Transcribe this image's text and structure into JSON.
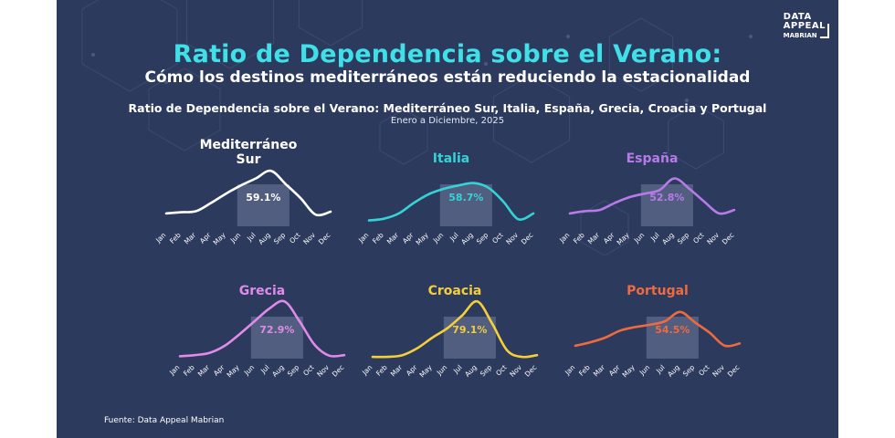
{
  "title": "Ratio de Dependencia sobre el Verano:",
  "subtitle": "Cómo los destinos mediterráneos están reduciendo la estacionalidad",
  "chart_heading": "Ratio de Dependencia sobre el Verano: Mediterráneo Sur, Italia, España, Grecia, Croacia y Portugal",
  "period": "Enero a Diciembre, 2025",
  "source": "Fuente: Data Appeal Mabrian",
  "logo": {
    "line1": "DATA",
    "line2": "APPEAL",
    "line3": "MABRIAN"
  },
  "colors": {
    "background": "#2c3a5e",
    "title": "#3fe0e8",
    "highlight": "#5d6b8c"
  },
  "chart_data": [
    {
      "type": "line",
      "title_lines": [
        "Mediterráneo",
        "Sur"
      ],
      "color": "#ffffff",
      "ratio_label": "59.1%",
      "categories": [
        "Jan",
        "Feb",
        "Mar",
        "Apr",
        "May",
        "Jun",
        "Jul",
        "Aug",
        "Sep",
        "Oct",
        "Nov",
        "Dec"
      ],
      "highlight": [
        "Jun",
        "Sep"
      ],
      "values": [
        0.22,
        0.24,
        0.26,
        0.4,
        0.56,
        0.7,
        0.82,
        0.95,
        0.72,
        0.48,
        0.2,
        0.25
      ]
    },
    {
      "type": "line",
      "title_lines": [
        "Italia"
      ],
      "color": "#35d3d6",
      "ratio_label": "58.7%",
      "categories": [
        "Jan",
        "Feb",
        "Mar",
        "Apr",
        "May",
        "Jun",
        "Jul",
        "Aug",
        "Sep",
        "Oct",
        "Nov",
        "Dec"
      ],
      "highlight": [
        "Jun",
        "Sep"
      ],
      "values": [
        0.1,
        0.13,
        0.22,
        0.4,
        0.55,
        0.64,
        0.7,
        0.74,
        0.66,
        0.42,
        0.12,
        0.22
      ]
    },
    {
      "type": "line",
      "title_lines": [
        "España"
      ],
      "color": "#b77be8",
      "ratio_label": "52.8%",
      "categories": [
        "Jan",
        "Feb",
        "Mar",
        "Apr",
        "May",
        "Jun",
        "Jul",
        "Aug",
        "Sep",
        "Oct",
        "Nov",
        "Dec"
      ],
      "highlight": [
        "Jun",
        "Sep"
      ],
      "values": [
        0.22,
        0.26,
        0.28,
        0.4,
        0.5,
        0.56,
        0.62,
        0.82,
        0.64,
        0.42,
        0.22,
        0.28
      ]
    },
    {
      "type": "line",
      "title_lines": [
        "Grecia"
      ],
      "color": "#e08be8",
      "ratio_label": "72.9%",
      "categories": [
        "Jan",
        "Feb",
        "Mar",
        "Apr",
        "May",
        "Jun",
        "Jul",
        "Aug",
        "Sep",
        "Oct",
        "Nov",
        "Dec"
      ],
      "highlight": [
        "Jun",
        "Sep"
      ],
      "values": [
        0.04,
        0.06,
        0.1,
        0.22,
        0.42,
        0.64,
        0.86,
        0.98,
        0.64,
        0.24,
        0.05,
        0.06
      ]
    },
    {
      "type": "line",
      "title_lines": [
        "Croacia"
      ],
      "color": "#f3cf3a",
      "ratio_label": "79.1%",
      "categories": [
        "Jan",
        "Feb",
        "Mar",
        "Apr",
        "May",
        "Jun",
        "Jul",
        "Aug",
        "Sep",
        "Oct",
        "Nov",
        "Dec"
      ],
      "highlight": [
        "Jun",
        "Sep"
      ],
      "values": [
        0.03,
        0.03,
        0.06,
        0.18,
        0.36,
        0.52,
        0.74,
        0.98,
        0.6,
        0.14,
        0.03,
        0.06
      ]
    },
    {
      "type": "line",
      "title_lines": [
        "Portugal"
      ],
      "color": "#ee6a3f",
      "ratio_label": "54.5%",
      "categories": [
        "Jan",
        "Feb",
        "Mar",
        "Apr",
        "May",
        "Jun",
        "Jul",
        "Aug",
        "Sep",
        "Oct",
        "Nov",
        "Dec"
      ],
      "highlight": [
        "Jun",
        "Sep"
      ],
      "values": [
        0.22,
        0.28,
        0.36,
        0.48,
        0.54,
        0.58,
        0.64,
        0.8,
        0.62,
        0.44,
        0.22,
        0.26
      ]
    }
  ]
}
